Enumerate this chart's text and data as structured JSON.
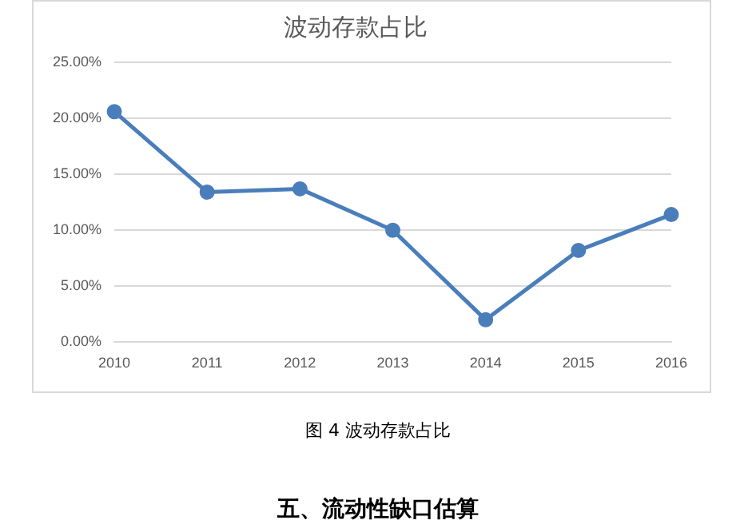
{
  "chart_data": {
    "type": "line",
    "title": "波动存款占比",
    "categories": [
      "2010",
      "2011",
      "2012",
      "2013",
      "2014",
      "2015",
      "2016"
    ],
    "series": [
      {
        "color": "#4a7ebb",
        "values": [
          20.6,
          13.4,
          13.7,
          10.0,
          2.0,
          8.2,
          11.4
        ]
      }
    ],
    "ylim": [
      0,
      25
    ],
    "yticks": [
      {
        "value": 0,
        "label": "0.00%"
      },
      {
        "value": 5,
        "label": "5.00%"
      },
      {
        "value": 10,
        "label": "10.00%"
      },
      {
        "value": 15,
        "label": "15.00%"
      },
      {
        "value": 20,
        "label": "20.00%"
      },
      {
        "value": 25,
        "label": "25.00%"
      }
    ],
    "grid": "y",
    "legend": false,
    "marker": "circle",
    "line_style": "solid",
    "annotations": [
      "图 4 波动存款占比",
      "五、流动性缺口估算"
    ]
  }
}
